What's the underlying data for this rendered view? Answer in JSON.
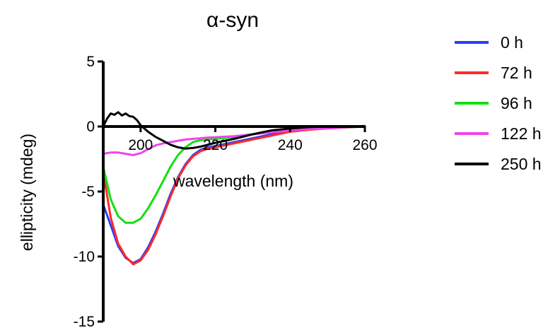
{
  "chart_data": {
    "type": "line",
    "title": "α-syn",
    "xlabel": "wavelength (nm)",
    "ylabel": "ellipticity (mdeg)",
    "xlim": [
      190,
      260
    ],
    "ylim": [
      -15,
      5
    ],
    "xticks": [
      200,
      220,
      240,
      260
    ],
    "yticks": [
      5,
      0,
      -5,
      -10,
      -15
    ],
    "xtick_labels": [
      "200",
      "220",
      "240",
      "260"
    ],
    "ytick_labels": [
      "5",
      "0",
      "-5",
      "-10",
      "-15"
    ],
    "legend_position": "right",
    "grid": false,
    "series": [
      {
        "name": "0 h",
        "color": "#2c3cff",
        "x": [
          190,
          192,
          194,
          196,
          198,
          200,
          202,
          204,
          206,
          208,
          210,
          212,
          214,
          216,
          218,
          220,
          225,
          230,
          235,
          240,
          245,
          250,
          255,
          260
        ],
        "y": [
          -6.0,
          -7.6,
          -9.2,
          -10.1,
          -10.5,
          -10.2,
          -9.3,
          -8.1,
          -6.7,
          -5.2,
          -3.9,
          -2.9,
          -2.2,
          -1.8,
          -1.6,
          -1.5,
          -1.2,
          -0.9,
          -0.6,
          -0.35,
          -0.2,
          -0.12,
          -0.06,
          0.0
        ]
      },
      {
        "name": "72 h",
        "color": "#ff2a2a",
        "x": [
          190,
          192,
          194,
          196,
          198,
          200,
          202,
          204,
          206,
          208,
          210,
          212,
          214,
          216,
          218,
          220,
          225,
          230,
          235,
          240,
          245,
          250,
          255,
          260
        ],
        "y": [
          -3.5,
          -7.0,
          -9.0,
          -10.0,
          -10.6,
          -10.3,
          -9.5,
          -8.3,
          -6.9,
          -5.4,
          -4.0,
          -3.0,
          -2.3,
          -1.9,
          -1.7,
          -1.6,
          -1.3,
          -1.0,
          -0.7,
          -0.4,
          -0.25,
          -0.15,
          -0.07,
          0.0
        ]
      },
      {
        "name": "96 h",
        "color": "#11e011",
        "x": [
          190,
          192,
          194,
          196,
          198,
          200,
          202,
          204,
          206,
          208,
          210,
          212,
          214,
          216,
          218,
          220,
          225,
          230,
          235,
          240,
          245,
          250,
          255,
          260
        ],
        "y": [
          -3.1,
          -5.6,
          -6.9,
          -7.4,
          -7.4,
          -7.1,
          -6.3,
          -5.3,
          -4.2,
          -3.1,
          -2.2,
          -1.6,
          -1.2,
          -1.05,
          -1.0,
          -0.95,
          -0.8,
          -0.6,
          -0.4,
          -0.25,
          -0.15,
          -0.1,
          -0.05,
          0.0
        ]
      },
      {
        "name": "122 h",
        "color": "#ee44ee",
        "x": [
          190,
          192,
          194,
          196,
          198,
          200,
          202,
          204,
          206,
          208,
          210,
          212,
          214,
          216,
          218,
          220,
          225,
          230,
          235,
          240,
          245,
          250,
          255,
          260
        ],
        "y": [
          -2.1,
          -2.0,
          -2.0,
          -2.1,
          -2.2,
          -2.05,
          -1.75,
          -1.45,
          -1.3,
          -1.2,
          -1.1,
          -1.0,
          -0.95,
          -0.9,
          -0.85,
          -0.82,
          -0.75,
          -0.6,
          -0.45,
          -0.3,
          -0.2,
          -0.15,
          -0.05,
          0.05
        ]
      },
      {
        "name": "250 h",
        "color": "#000000",
        "x": [
          190,
          191,
          192,
          193,
          194,
          195,
          196,
          197,
          198,
          199,
          200,
          202,
          204,
          206,
          208,
          210,
          212,
          214,
          216,
          218,
          220,
          225,
          230,
          235,
          240,
          245,
          250,
          255,
          260
        ],
        "y": [
          0.0,
          0.6,
          1.0,
          0.9,
          1.1,
          0.85,
          1.0,
          0.8,
          0.75,
          0.5,
          0.1,
          -0.4,
          -0.8,
          -1.1,
          -1.4,
          -1.6,
          -1.7,
          -1.65,
          -1.55,
          -1.4,
          -1.25,
          -0.95,
          -0.6,
          -0.3,
          -0.15,
          -0.05,
          0.0,
          0.0,
          0.0
        ]
      }
    ]
  }
}
